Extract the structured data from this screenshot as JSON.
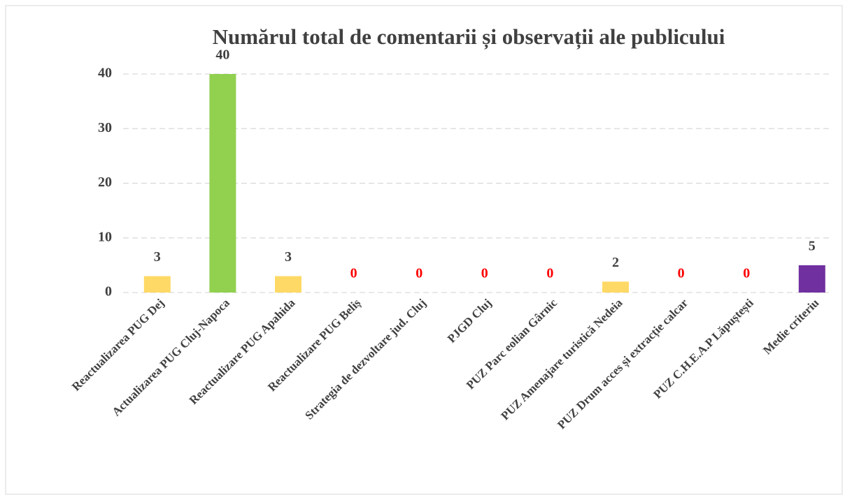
{
  "chart_data": {
    "type": "bar",
    "title": "Numărul total de comentarii și observații ale publicului",
    "categories": [
      "Reactualizarea PUG Dej",
      "Actualizarea PUG Cluj-Napoca",
      "Reactualizare PUG Apahida",
      "Reactualizare PUG Beliș",
      "Strategia de dezvoltare jud. Cluj",
      "PJGD Cluj",
      "PUZ Parc eolian Gârnic",
      "PUZ Amenajare turistică Nedeia",
      "PUZ Drum acces și extracție calcar",
      "PUZ C.H.E.A.P Lăpuștești",
      "Medie criteriu"
    ],
    "values": [
      3,
      40,
      3,
      0,
      0,
      0,
      0,
      2,
      0,
      0,
      5
    ],
    "colors": [
      "#ffd966",
      "#92d050",
      "#ffd966",
      "#ffd966",
      "#ffd966",
      "#ffd966",
      "#ffd966",
      "#ffd966",
      "#ffd966",
      "#ffd966",
      "#7030a0"
    ],
    "label_colors": [
      "#404040",
      "#404040",
      "#404040",
      "#ff0000",
      "#ff0000",
      "#ff0000",
      "#ff0000",
      "#404040",
      "#ff0000",
      "#ff0000",
      "#404040"
    ],
    "ylim": [
      0,
      40
    ],
    "yticks": [
      0,
      10,
      20,
      30,
      40
    ],
    "grid": true
  }
}
